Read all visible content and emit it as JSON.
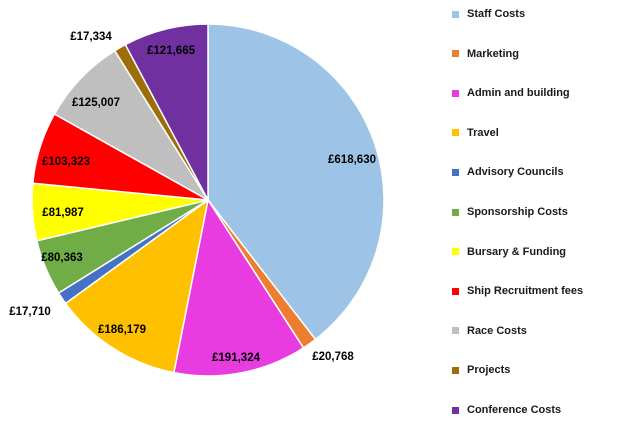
{
  "chart_data": {
    "type": "pie",
    "title": "",
    "legend_position": "right",
    "slices": [
      {
        "name": "Staff Costs",
        "value": 618630,
        "label": "£618,630",
        "color": "#9dc3e6"
      },
      {
        "name": "Marketing",
        "value": 20768,
        "label": "£20,768",
        "color": "#ed7d31"
      },
      {
        "name": "Admin and building",
        "value": 191324,
        "label": "£191,324",
        "color": "#e83ce0"
      },
      {
        "name": "Travel",
        "value": 186179,
        "label": "£186,179",
        "color": "#ffc000"
      },
      {
        "name": "Advisory Councils",
        "value": 17710,
        "label": "£17,710",
        "color": "#4472c4"
      },
      {
        "name": "Sponsorship Costs",
        "value": 80363,
        "label": "£80,363",
        "color": "#70ad47"
      },
      {
        "name": "Bursary & Funding",
        "value": 81987,
        "label": "£81,987",
        "color": "#ffff00"
      },
      {
        "name": "Ship Recruitment fees",
        "value": 103323,
        "label": "£103,323",
        "color": "#ff0000"
      },
      {
        "name": "Race Costs",
        "value": 125007,
        "label": "£125,007",
        "color": "#bfbfbf"
      },
      {
        "name": "Projects",
        "value": 17334,
        "label": "£17,334",
        "color": "#9c6d0a"
      },
      {
        "name": "Conference Costs",
        "value": 121665,
        "label": "£121,665",
        "color": "#7030a0"
      }
    ]
  }
}
